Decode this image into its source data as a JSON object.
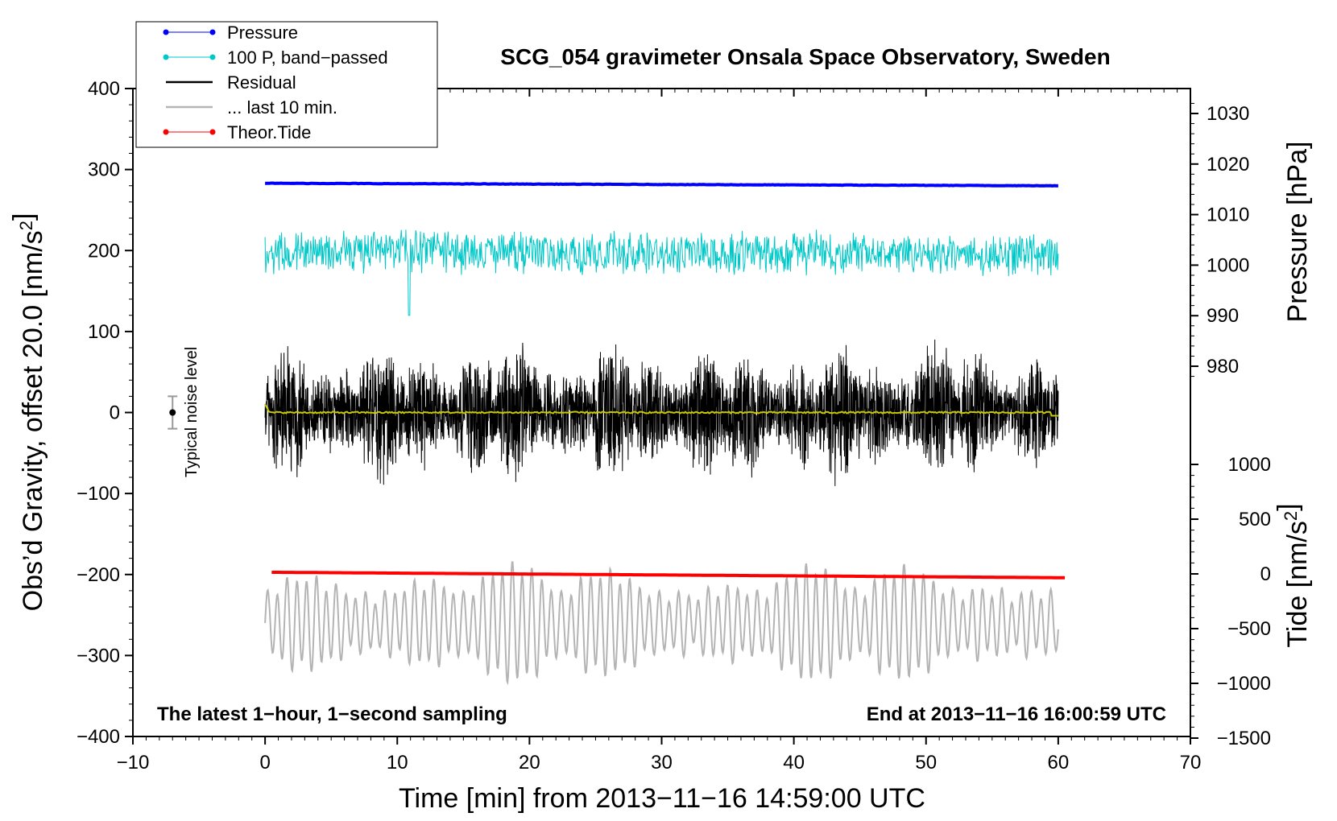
{
  "chart_data": {
    "type": "line",
    "title": "SCG_054 gravimeter Onsala Space Observatory, Sweden",
    "xlabel": "Time [min] from 2013−11−16 14:59:00 UTC",
    "ylabel_left": "Obs’d Gravity, offset 20.0 [nm/s²]",
    "ylabel_right_top": "Pressure [hPa]",
    "ylabel_right_bottom": "Tide [nm/s²]",
    "xlim": [
      -10,
      70
    ],
    "ylim": [
      -400,
      400
    ],
    "pressure_axis_range": [
      975,
      1033
    ],
    "tide_axis_range": [
      -1500,
      1000
    ],
    "x_ticks": [
      "−10",
      "0",
      "10",
      "20",
      "30",
      "40",
      "50",
      "60",
      "70"
    ],
    "x_tick_values": [
      -10,
      0,
      10,
      20,
      30,
      40,
      50,
      60,
      70
    ],
    "y_ticks": [
      "400",
      "300",
      "200",
      "100",
      "0",
      "−100",
      "−200",
      "−300",
      "−400"
    ],
    "y_tick_values": [
      400,
      300,
      200,
      100,
      0,
      -100,
      -200,
      -300,
      -400
    ],
    "pressure_ticks": [
      "1030",
      "1020",
      "1010",
      "1000",
      "990",
      "980"
    ],
    "pressure_tick_values": [
      1030,
      1020,
      1010,
      1000,
      990,
      980
    ],
    "tide_ticks": [
      "1000",
      "500",
      "0",
      "−500",
      "−1000",
      "−1500"
    ],
    "tide_tick_values": [
      1000,
      500,
      0,
      -500,
      -1000,
      -1500
    ],
    "legend_position": "top-left",
    "legend": [
      {
        "label": "Pressure",
        "color": "#0000ff",
        "style": "line-dot"
      },
      {
        "label": "100 P, band−passed",
        "color": "#00c8c8",
        "style": "line-dot"
      },
      {
        "label": "Residual",
        "color": "#000000",
        "style": "line"
      },
      {
        "label": "... last 10 min.",
        "color": "#b4b4b4",
        "style": "line"
      },
      {
        "label": "Theor.Tide",
        "color": "#ff0000",
        "style": "line-dot"
      }
    ],
    "series": [
      {
        "name": "Pressure",
        "axis": "pressure",
        "x_range": [
          0,
          60
        ],
        "values_start_end": [
          1016.2,
          1015.7
        ],
        "color": "#0000ff"
      },
      {
        "name": "100 P, band−passed",
        "axis": "left",
        "x_range": [
          0,
          60
        ],
        "center": 200,
        "amplitude": 30,
        "color": "#00c8c8"
      },
      {
        "name": "Residual",
        "axis": "left",
        "x_range": [
          0,
          60
        ],
        "center": 0,
        "amplitude": 100,
        "color": "#000000"
      },
      {
        "name": "... last 10 min.",
        "axis": "left",
        "x_range": [
          0,
          60
        ],
        "center": -260,
        "amplitude": 70,
        "color": "#b4b4b4"
      },
      {
        "name": "Theor.Tide",
        "axis": "tide",
        "x_range": [
          0.5,
          60.5
        ],
        "values_start_end": [
          15,
          -35
        ],
        "color": "#ff0000"
      },
      {
        "axis": "left",
        "x_range": [
          0,
          60
        ],
        "center": 0,
        "color": "#c8c800"
      }
    ],
    "annotations": {
      "noise_label": "Typical noise level",
      "noise_bar": {
        "x": -7,
        "center": 0,
        "halfwidth": 20
      },
      "bottom_left": "The latest 1−hour, 1−second sampling",
      "bottom_right": "End at 2013−11−16 16:00:59 UTC"
    }
  }
}
